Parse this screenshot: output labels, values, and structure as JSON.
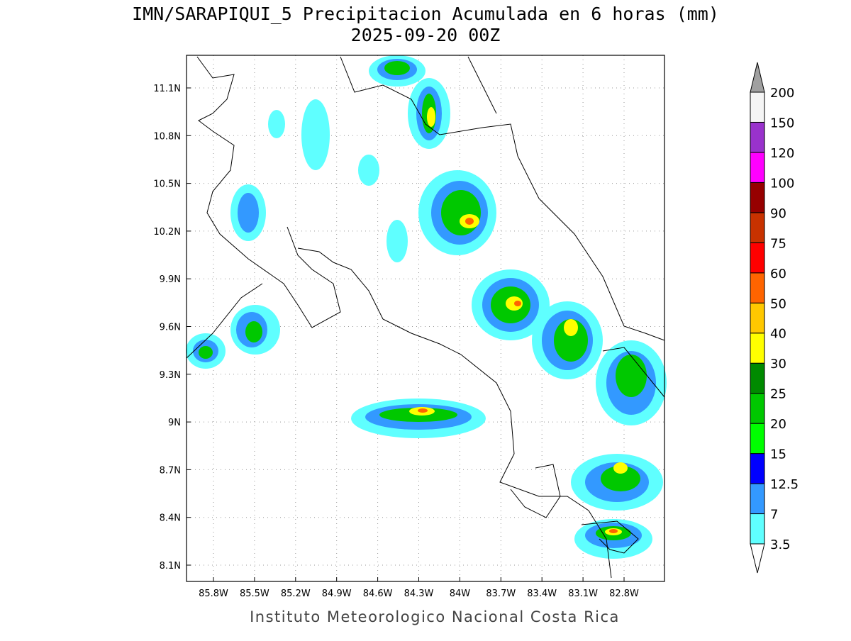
{
  "map": {
    "title": "IMN/SARAPIQUI_5 Precipitacion Acumulada en 6 horas (mm)",
    "subtitle": "2025-09-20 00Z",
    "lat_ticks": [
      "11.1N",
      "10.8N",
      "10.5N",
      "10.2N",
      "9.9N",
      "9.6N",
      "9.3N",
      "9N",
      "8.7N",
      "8.4N",
      "8.1N"
    ],
    "lon_ticks": [
      "85.8W",
      "85.5W",
      "85.2W",
      "84.9W",
      "84.6W",
      "84.3W",
      "84W",
      "83.7W",
      "83.4W",
      "83.1W",
      "82.8W"
    ],
    "footer": "Instituto Meteorologico Nacional Costa Rica"
  },
  "colorbar": {
    "levels": [
      3.5,
      7,
      12.5,
      15,
      20,
      25,
      30,
      40,
      50,
      60,
      75,
      90,
      100,
      120,
      150,
      200
    ],
    "colors": [
      "#5fffff",
      "#3399ff",
      "#0000ff",
      "#00ff00",
      "#00c800",
      "#008a00",
      "#ffff00",
      "#ffc800",
      "#ff6400",
      "#ff0000",
      "#c83200",
      "#960000",
      "#ff00ff",
      "#9932cc",
      "#f5f5f5"
    ],
    "under_color": "#ffffff",
    "over_color": "#a0a0a0"
  }
}
